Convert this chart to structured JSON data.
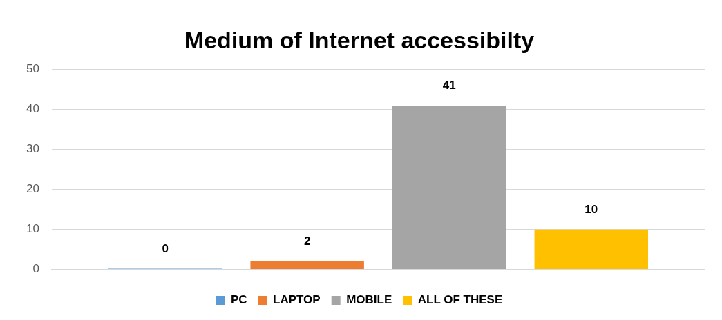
{
  "chart_data": {
    "type": "bar",
    "title": "Medium of Internet accessibilty",
    "categories": [
      null
    ],
    "series": [
      {
        "name": "PC",
        "color": "#5b9bd5",
        "values": [
          0
        ]
      },
      {
        "name": "LAPTOP",
        "color": "#ed7d31",
        "values": [
          2
        ]
      },
      {
        "name": "MOBILE",
        "color": "#a5a5a5",
        "values": [
          41
        ]
      },
      {
        "name": "ALL OF THESE",
        "color": "#ffc000",
        "values": [
          10
        ]
      }
    ],
    "ylim": [
      0,
      50
    ],
    "yticks": [
      0,
      10,
      20,
      30,
      40,
      50
    ],
    "grid": "y",
    "legend": "bottom",
    "data_labels": true
  }
}
